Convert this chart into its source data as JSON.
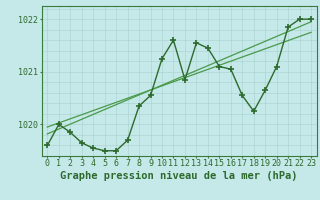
{
  "xlabel": "Graphe pression niveau de la mer (hPa)",
  "x_values": [
    0,
    1,
    2,
    3,
    4,
    5,
    6,
    7,
    8,
    9,
    10,
    11,
    12,
    13,
    14,
    15,
    16,
    17,
    18,
    19,
    20,
    21,
    22,
    23
  ],
  "main_data": [
    1019.6,
    1020.0,
    1019.85,
    1019.65,
    1019.55,
    1019.5,
    1019.5,
    1019.7,
    1020.35,
    1020.55,
    1021.25,
    1021.6,
    1020.85,
    1021.55,
    1021.45,
    1021.1,
    1021.05,
    1020.55,
    1020.25,
    1020.65,
    1021.1,
    1021.85,
    1022.0,
    1022.0
  ],
  "trend1_x": [
    0,
    23
  ],
  "trend1_y": [
    1019.82,
    1021.95
  ],
  "trend2_x": [
    0,
    23
  ],
  "trend2_y": [
    1019.95,
    1021.75
  ],
  "bg_color": "#c5e8e8",
  "grid_color": "#aed4d4",
  "line_color": "#2d6a2d",
  "trend_color": "#4a9a4a",
  "ylim": [
    1019.4,
    1022.25
  ],
  "yticks": [
    1020,
    1021,
    1022
  ],
  "xticks": [
    0,
    1,
    2,
    3,
    4,
    5,
    6,
    7,
    8,
    9,
    10,
    11,
    12,
    13,
    14,
    15,
    16,
    17,
    18,
    19,
    20,
    21,
    22,
    23
  ],
  "marker": "+",
  "marker_size": 5,
  "marker_lw": 1.2,
  "line_width": 1.0,
  "xlabel_fontsize": 7.5,
  "tick_fontsize": 6.0,
  "border_color": "#3a7a3a"
}
